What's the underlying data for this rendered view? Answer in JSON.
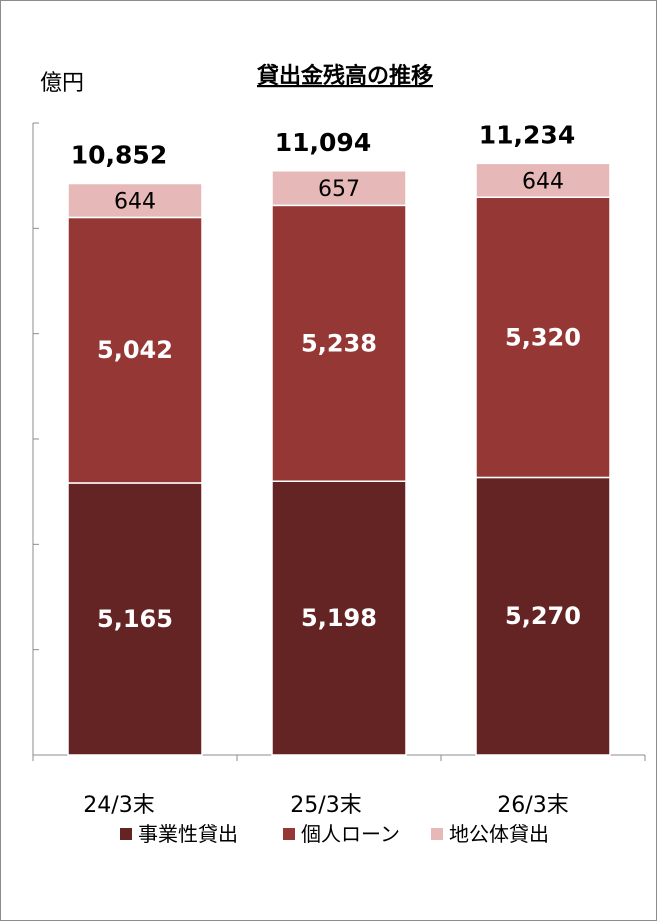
{
  "chart_data": {
    "type": "bar",
    "stacked": true,
    "title": "貸出金残高の推移",
    "ylabel": "億円",
    "xlabel": "",
    "categories": [
      "24/3末",
      "25/3末",
      "26/3末"
    ],
    "series": [
      {
        "name": "事業性貸出",
        "values": [
          5165,
          5198,
          5270
        ],
        "labels": [
          "5,165",
          "5,198",
          "5,270"
        ],
        "color": "#632423"
      },
      {
        "name": "個人ローン",
        "values": [
          5042,
          5238,
          5320
        ],
        "labels": [
          "5,042",
          "5,238",
          "5,320"
        ],
        "color": "#953735"
      },
      {
        "name": "地公体貸出",
        "values": [
          644,
          657,
          644
        ],
        "labels": [
          "644",
          "657",
          "644"
        ],
        "color": "#e6b9b8"
      }
    ],
    "totals": [
      10852,
      11094,
      11234
    ],
    "total_labels": [
      "10,852",
      "11,094",
      "11,234"
    ],
    "ylim": [
      0,
      12000
    ],
    "grid": false,
    "legend_position": "bottom"
  }
}
